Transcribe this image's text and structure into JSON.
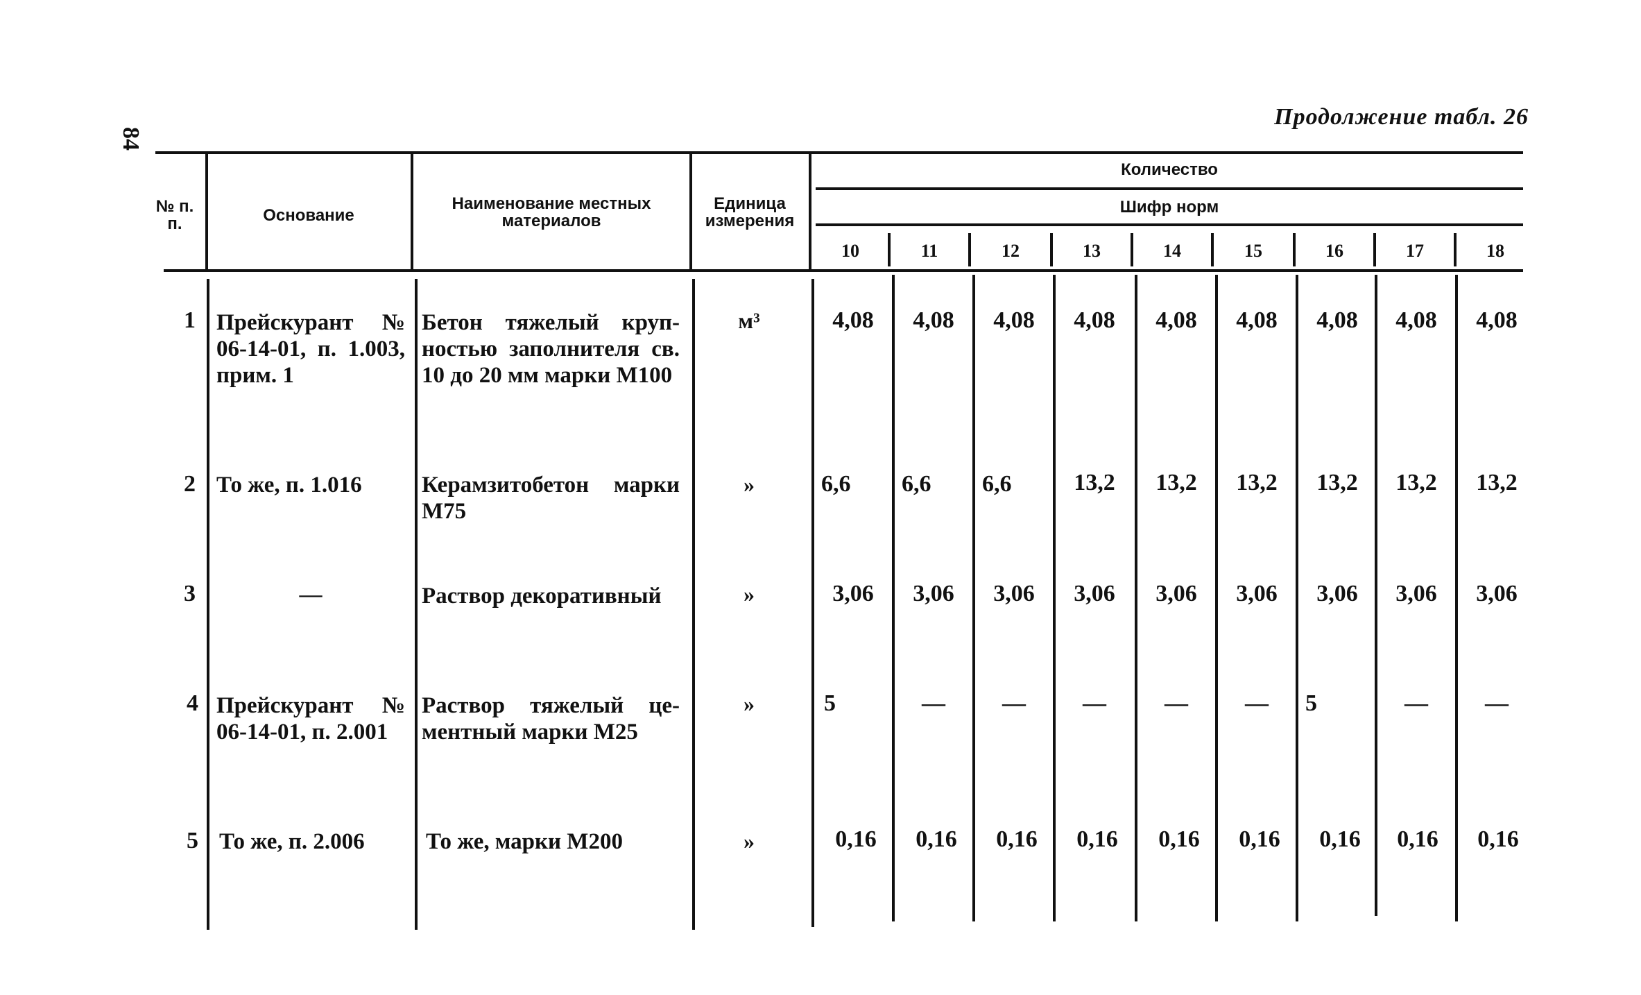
{
  "page_number": "84",
  "continuation_title": "Продолжение табл. 26",
  "header": {
    "num": "№ п. п.",
    "basis": "Основание",
    "material": "Наименование местных материалов",
    "unit": "Единица измерения",
    "quantity": "Количество",
    "norm_code": "Шифр норм",
    "columns": [
      "10",
      "11",
      "12",
      "13",
      "14",
      "15",
      "16",
      "17",
      "18"
    ]
  },
  "rows": [
    {
      "num": "1",
      "basis": "Прейскурант № 06-14-01, п. 1.003, прим. 1",
      "material": "Бетон тяжелый круп­ностью заполнителя св. 10 до 20 мм мар­ки М100",
      "unit": "м³",
      "values": [
        "4,08",
        "4,08",
        "4,08",
        "4,08",
        "4,08",
        "4,08",
        "4,08",
        "4,08",
        "4,08"
      ]
    },
    {
      "num": "2",
      "basis": "То же, п. 1.016",
      "material": "Керамзитобетон мар­ки М75",
      "unit": "»",
      "values": [
        "6,6",
        "6,6",
        "6,6",
        "13,2",
        "13,2",
        "13,2",
        "13,2",
        "13,2",
        "13,2"
      ]
    },
    {
      "num": "3",
      "basis": "—",
      "material": "Раствор декоратив­ный",
      "unit": "»",
      "values": [
        "3,06",
        "3,06",
        "3,06",
        "3,06",
        "3,06",
        "3,06",
        "3,06",
        "3,06",
        "3,06"
      ]
    },
    {
      "num": "4",
      "basis": "Прейскурант № 06-14-01, п. 2.001",
      "material": "Раствор тяжелый це­ментный марки М25",
      "unit": "»",
      "values": [
        "5",
        "—",
        "—",
        "—",
        "—",
        "—",
        "5",
        "—",
        "—"
      ]
    },
    {
      "num": "5",
      "basis": "То же, п. 2.006",
      "material": "То же, марки М200",
      "unit": "»",
      "values": [
        "0,16",
        "0,16",
        "0,16",
        "0,16",
        "0,16",
        "0,16",
        "0,16",
        "0,16",
        "0,16"
      ]
    }
  ]
}
